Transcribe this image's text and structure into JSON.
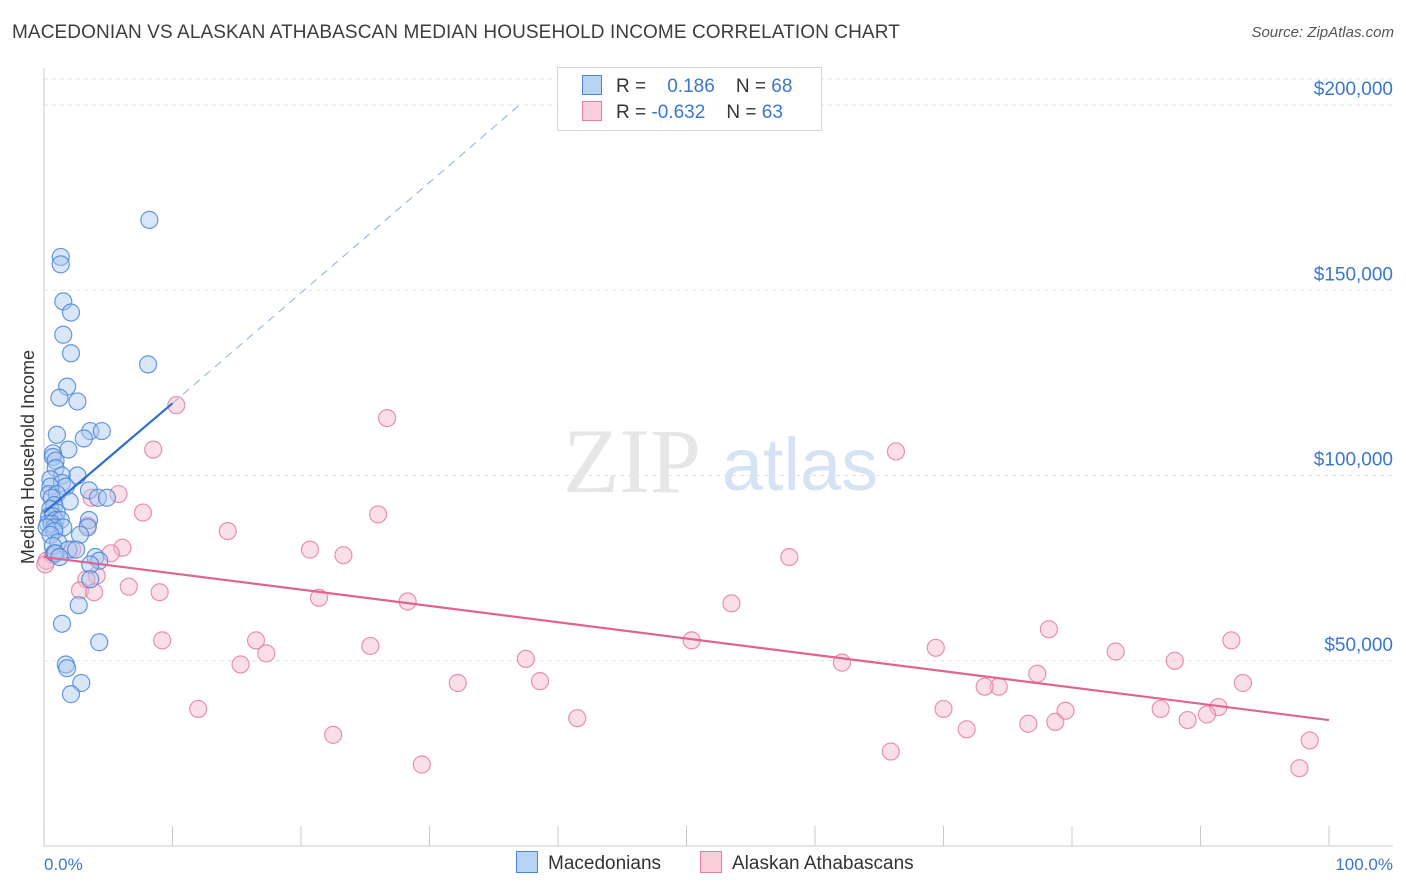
{
  "title": "MACEDONIAN VS ALASKAN ATHABASCAN MEDIAN HOUSEHOLD INCOME CORRELATION CHART",
  "source": "Source: ZipAtlas.com",
  "watermark": {
    "zip": "ZIP",
    "atlas": "atlas"
  },
  "colors": {
    "blue_fill": "#aac8f0",
    "blue_stroke": "#4a86d8",
    "blue_line": "#2f6fd0",
    "pink_fill": "#f6b9cc",
    "pink_stroke": "#e47fa0",
    "pink_line": "#e0648f",
    "tick_text": "#3a78c9",
    "grid": "#e2e2e2"
  },
  "legend_stats": [
    {
      "r_label": "R =",
      "r_value": "0.186",
      "n_label": "N =",
      "n_value": "68"
    },
    {
      "r_label": "R =",
      "r_value": "-0.632",
      "n_label": "N =",
      "n_value": "63"
    }
  ],
  "chart_data": {
    "type": "scatter",
    "title": "MACEDONIAN VS ALASKAN ATHABASCAN MEDIAN HOUSEHOLD INCOME CORRELATION CHART",
    "xlabel": "",
    "ylabel": "Median Household Income",
    "xlim": [
      0,
      100
    ],
    "ylim": [
      0,
      210000
    ],
    "x_tick_labels": [
      "0.0%",
      "100.0%"
    ],
    "y_ticks": [
      50000,
      100000,
      150000,
      200000
    ],
    "y_tick_labels": [
      "$50,000",
      "$100,000",
      "$150,000",
      "$200,000"
    ],
    "grid": true,
    "legend_position": "bottom-center",
    "series": [
      {
        "name": "Macedonians",
        "r": 0.186,
        "n": 68,
        "trend": {
          "x": [
            0,
            10
          ],
          "y": [
            90000,
            119500
          ],
          "dashed_to": [
            37,
            200000
          ]
        },
        "points": [
          [
            8.2,
            169000
          ],
          [
            1.3,
            159000
          ],
          [
            1.3,
            157000
          ],
          [
            1.5,
            147000
          ],
          [
            2.1,
            144000
          ],
          [
            1.5,
            138000
          ],
          [
            2.1,
            133000
          ],
          [
            8.1,
            130000
          ],
          [
            1.8,
            124000
          ],
          [
            1.2,
            121000
          ],
          [
            2.6,
            120000
          ],
          [
            3.6,
            112000
          ],
          [
            4.5,
            112000
          ],
          [
            1.0,
            111000
          ],
          [
            3.1,
            110000
          ],
          [
            1.9,
            107000
          ],
          [
            0.7,
            106000
          ],
          [
            0.7,
            105000
          ],
          [
            0.9,
            104000
          ],
          [
            0.9,
            102000
          ],
          [
            1.4,
            100000
          ],
          [
            2.6,
            100000
          ],
          [
            0.5,
            99000
          ],
          [
            1.4,
            98000
          ],
          [
            1.7,
            97000
          ],
          [
            0.5,
            97000
          ],
          [
            3.5,
            96000
          ],
          [
            0.4,
            95000
          ],
          [
            1.0,
            95000
          ],
          [
            4.2,
            94000
          ],
          [
            4.9,
            94000
          ],
          [
            0.6,
            94000
          ],
          [
            2.0,
            93000
          ],
          [
            0.8,
            92000
          ],
          [
            0.5,
            91000
          ],
          [
            1.0,
            90000
          ],
          [
            0.4,
            89000
          ],
          [
            0.7,
            89000
          ],
          [
            0.9,
            88000
          ],
          [
            3.5,
            88000
          ],
          [
            1.3,
            88000
          ],
          [
            0.3,
            87000
          ],
          [
            0.6,
            87000
          ],
          [
            0.8,
            86000
          ],
          [
            1.5,
            86000
          ],
          [
            0.2,
            86000
          ],
          [
            3.4,
            86000
          ],
          [
            0.8,
            85000
          ],
          [
            0.5,
            84000
          ],
          [
            2.8,
            84000
          ],
          [
            1.1,
            82000
          ],
          [
            0.7,
            81000
          ],
          [
            1.9,
            80000
          ],
          [
            2.5,
            80000
          ],
          [
            0.8,
            79000
          ],
          [
            0.9,
            79000
          ],
          [
            1.2,
            78000
          ],
          [
            4.0,
            78000
          ],
          [
            4.3,
            77000
          ],
          [
            3.6,
            76000
          ],
          [
            3.6,
            72000
          ],
          [
            2.7,
            65000
          ],
          [
            1.4,
            60000
          ],
          [
            4.3,
            55000
          ],
          [
            1.7,
            49000
          ],
          [
            1.8,
            48000
          ],
          [
            2.9,
            44000
          ],
          [
            2.1,
            41000
          ]
        ]
      },
      {
        "name": "Alaskan Athabascans",
        "r": -0.632,
        "n": 63,
        "trend": {
          "x": [
            0,
            100
          ],
          "y": [
            78000,
            34000
          ]
        },
        "points": [
          [
            10.3,
            119000
          ],
          [
            26.7,
            115500
          ],
          [
            8.5,
            107000
          ],
          [
            66.3,
            106500
          ],
          [
            5.8,
            95000
          ],
          [
            3.7,
            94000
          ],
          [
            7.7,
            90000
          ],
          [
            26.0,
            89500
          ],
          [
            3.4,
            86500
          ],
          [
            14.3,
            85000
          ],
          [
            6.1,
            80500
          ],
          [
            2.2,
            80000
          ],
          [
            20.7,
            80000
          ],
          [
            5.2,
            79000
          ],
          [
            0.7,
            78500
          ],
          [
            23.3,
            78500
          ],
          [
            58.0,
            78000
          ],
          [
            0.2,
            77000
          ],
          [
            4.1,
            73000
          ],
          [
            3.3,
            72000
          ],
          [
            6.6,
            70000
          ],
          [
            2.8,
            69000
          ],
          [
            9.0,
            68500
          ],
          [
            3.9,
            68500
          ],
          [
            21.4,
            67000
          ],
          [
            28.3,
            66000
          ],
          [
            53.5,
            65500
          ],
          [
            78.2,
            58500
          ],
          [
            92.4,
            55500
          ],
          [
            9.2,
            55500
          ],
          [
            16.5,
            55500
          ],
          [
            50.4,
            55500
          ],
          [
            25.4,
            54000
          ],
          [
            69.4,
            53500
          ],
          [
            83.4,
            52500
          ],
          [
            17.3,
            52000
          ],
          [
            37.5,
            50500
          ],
          [
            88.0,
            50000
          ],
          [
            62.1,
            49500
          ],
          [
            15.3,
            49000
          ],
          [
            77.3,
            46500
          ],
          [
            32.2,
            44000
          ],
          [
            38.6,
            44500
          ],
          [
            93.3,
            44000
          ],
          [
            74.3,
            43000
          ],
          [
            73.2,
            43000
          ],
          [
            12.0,
            37000
          ],
          [
            70.0,
            37000
          ],
          [
            79.5,
            36500
          ],
          [
            86.9,
            37000
          ],
          [
            91.4,
            37500
          ],
          [
            90.5,
            35500
          ],
          [
            41.5,
            34500
          ],
          [
            89.0,
            34000
          ],
          [
            78.7,
            33500
          ],
          [
            76.6,
            33000
          ],
          [
            71.8,
            31500
          ],
          [
            22.5,
            30000
          ],
          [
            98.5,
            28500
          ],
          [
            65.9,
            25500
          ],
          [
            29.4,
            22000
          ],
          [
            97.7,
            21000
          ],
          [
            0.1,
            76000
          ]
        ]
      }
    ]
  }
}
